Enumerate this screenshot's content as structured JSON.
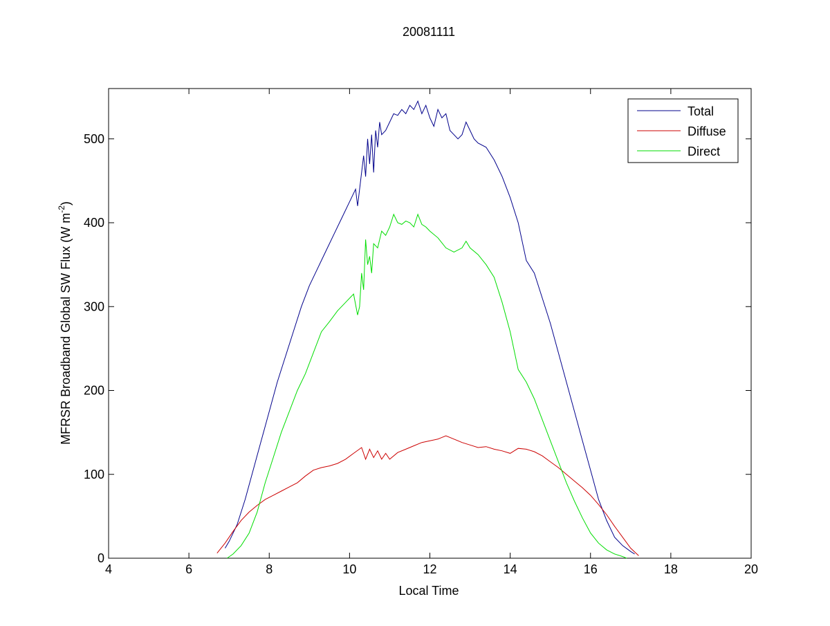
{
  "chart_data": {
    "type": "line",
    "title": "20081111",
    "xlabel": "Local Time",
    "ylabel_main": "MFRSR Broadband Global SW Flux (W m",
    "ylabel_sup": "-2",
    "ylabel_close": ")",
    "xlim": [
      4,
      20
    ],
    "ylim": [
      0,
      560
    ],
    "xticks": [
      4,
      6,
      8,
      10,
      12,
      14,
      16,
      18,
      20
    ],
    "yticks": [
      0,
      100,
      200,
      300,
      400,
      500
    ],
    "grid": false,
    "legend_position": "top-right",
    "series": [
      {
        "name": "Total",
        "color": "#00008b",
        "x": [
          6.9,
          7.0,
          7.2,
          7.4,
          7.6,
          7.8,
          8.0,
          8.2,
          8.4,
          8.6,
          8.8,
          9.0,
          9.2,
          9.4,
          9.6,
          9.8,
          10.0,
          10.15,
          10.2,
          10.3,
          10.35,
          10.4,
          10.45,
          10.5,
          10.55,
          10.6,
          10.65,
          10.7,
          10.75,
          10.8,
          10.9,
          11.0,
          11.1,
          11.2,
          11.3,
          11.4,
          11.5,
          11.6,
          11.7,
          11.8,
          11.9,
          12.0,
          12.1,
          12.2,
          12.3,
          12.4,
          12.5,
          12.6,
          12.7,
          12.8,
          12.9,
          13.0,
          13.1,
          13.2,
          13.4,
          13.6,
          13.8,
          14.0,
          14.2,
          14.4,
          14.6,
          14.8,
          15.0,
          15.2,
          15.4,
          15.6,
          15.8,
          16.0,
          16.2,
          16.4,
          16.6,
          16.8,
          17.0,
          17.1
        ],
        "y": [
          12,
          20,
          40,
          70,
          105,
          140,
          175,
          210,
          240,
          270,
          300,
          325,
          345,
          365,
          385,
          405,
          425,
          440,
          420,
          460,
          480,
          455,
          500,
          470,
          505,
          460,
          510,
          490,
          520,
          505,
          510,
          520,
          530,
          528,
          535,
          530,
          540,
          535,
          545,
          530,
          540,
          525,
          515,
          535,
          525,
          530,
          510,
          505,
          500,
          505,
          520,
          510,
          500,
          495,
          490,
          475,
          455,
          430,
          400,
          355,
          340,
          310,
          280,
          245,
          210,
          175,
          140,
          105,
          70,
          45,
          25,
          15,
          8,
          5
        ]
      },
      {
        "name": "Diffuse",
        "color": "#cc0000",
        "x": [
          6.7,
          6.9,
          7.1,
          7.3,
          7.5,
          7.7,
          7.9,
          8.1,
          8.3,
          8.5,
          8.7,
          8.9,
          9.1,
          9.3,
          9.5,
          9.7,
          9.9,
          10.1,
          10.3,
          10.4,
          10.5,
          10.6,
          10.7,
          10.8,
          10.9,
          11.0,
          11.2,
          11.4,
          11.6,
          11.8,
          12.0,
          12.2,
          12.4,
          12.6,
          12.8,
          13.0,
          13.2,
          13.4,
          13.6,
          13.8,
          14.0,
          14.2,
          14.4,
          14.6,
          14.8,
          15.0,
          15.2,
          15.4,
          15.6,
          15.8,
          16.0,
          16.2,
          16.4,
          16.6,
          16.8,
          17.0,
          17.2
        ],
        "y": [
          6,
          18,
          32,
          45,
          55,
          63,
          70,
          75,
          80,
          85,
          90,
          98,
          105,
          108,
          110,
          113,
          118,
          125,
          132,
          118,
          130,
          120,
          128,
          118,
          125,
          118,
          126,
          130,
          134,
          138,
          140,
          142,
          146,
          142,
          138,
          135,
          132,
          133,
          130,
          128,
          125,
          131,
          130,
          127,
          122,
          115,
          108,
          100,
          92,
          84,
          75,
          64,
          52,
          38,
          25,
          12,
          3
        ]
      },
      {
        "name": "Direct",
        "color": "#00dd00",
        "x": [
          6.95,
          7.1,
          7.3,
          7.5,
          7.7,
          7.9,
          8.1,
          8.3,
          8.5,
          8.7,
          8.9,
          9.1,
          9.3,
          9.5,
          9.7,
          9.9,
          10.1,
          10.2,
          10.25,
          10.3,
          10.35,
          10.4,
          10.45,
          10.5,
          10.55,
          10.6,
          10.7,
          10.8,
          10.9,
          11.0,
          11.1,
          11.2,
          11.3,
          11.4,
          11.5,
          11.6,
          11.7,
          11.8,
          11.9,
          12.0,
          12.2,
          12.4,
          12.6,
          12.8,
          12.9,
          13.0,
          13.2,
          13.4,
          13.6,
          13.8,
          14.0,
          14.2,
          14.4,
          14.6,
          14.8,
          15.0,
          15.2,
          15.4,
          15.6,
          15.8,
          16.0,
          16.2,
          16.4,
          16.6,
          16.8,
          16.9
        ],
        "y": [
          0,
          5,
          15,
          30,
          55,
          90,
          120,
          150,
          175,
          200,
          220,
          245,
          270,
          282,
          295,
          305,
          315,
          290,
          300,
          340,
          320,
          380,
          350,
          360,
          340,
          375,
          370,
          390,
          385,
          395,
          410,
          400,
          398,
          402,
          400,
          395,
          410,
          398,
          395,
          390,
          382,
          370,
          365,
          370,
          378,
          370,
          362,
          350,
          335,
          305,
          270,
          225,
          210,
          190,
          165,
          140,
          115,
          90,
          68,
          48,
          30,
          18,
          10,
          5,
          2,
          0
        ]
      }
    ]
  }
}
